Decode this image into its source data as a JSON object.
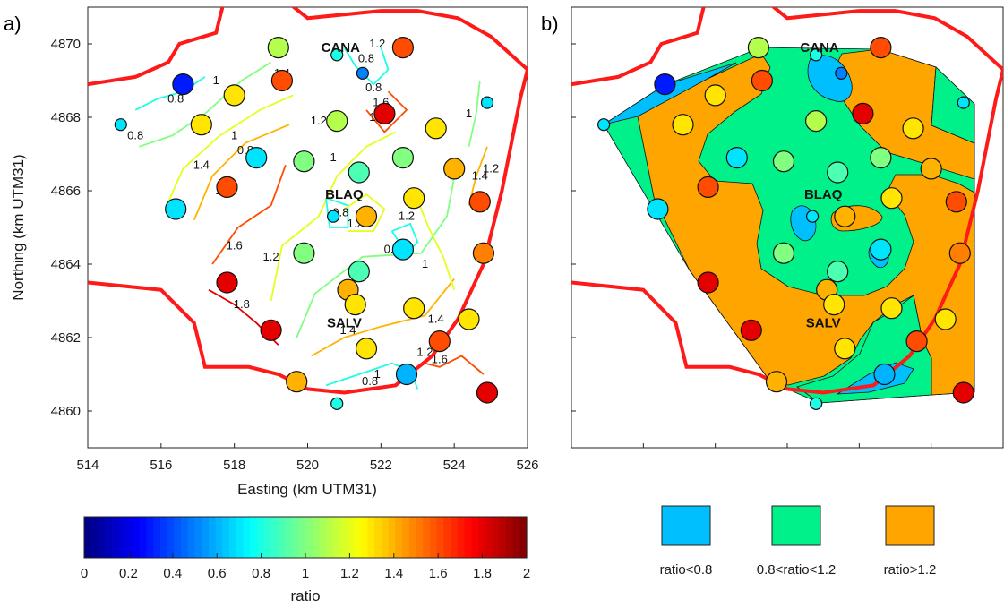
{
  "colors": {
    "boundary": "#ff1a1a",
    "class_low": "#00bfff",
    "class_mid": "#00f08a",
    "class_high": "#ffa500"
  },
  "chart_data": [
    {
      "type": "scatter",
      "panel_label": "a)",
      "xlabel": "Easting (km UTM31)",
      "ylabel": "Northing (km UTM31)",
      "xlim": [
        514,
        526
      ],
      "ylim": [
        4859,
        4871
      ],
      "x_ticks": [
        514,
        516,
        518,
        520,
        522,
        524,
        526
      ],
      "y_ticks": [
        4860,
        4862,
        4864,
        4866,
        4868,
        4870
      ],
      "overlay": "contour lines of ratio with inline labels",
      "contour_labels": [
        {
          "text": "0.8",
          "x": 515.3,
          "y": 4867.5
        },
        {
          "text": "0.8",
          "x": 516.4,
          "y": 4868.5
        },
        {
          "text": "1",
          "x": 517.5,
          "y": 4869.0
        },
        {
          "text": "1.4",
          "x": 517.1,
          "y": 4866.7
        },
        {
          "text": "1.2",
          "x": 517.7,
          "y": 4866.0
        },
        {
          "text": "1",
          "x": 518.0,
          "y": 4867.5
        },
        {
          "text": "0.8",
          "x": 518.3,
          "y": 4867.1
        },
        {
          "text": "1.6",
          "x": 518.0,
          "y": 4864.5
        },
        {
          "text": "1.8",
          "x": 518.2,
          "y": 4862.9
        },
        {
          "text": "1.2",
          "x": 519.0,
          "y": 4864.2
        },
        {
          "text": "1.4",
          "x": 519.3,
          "y": 4869.2
        },
        {
          "text": "1.2",
          "x": 520.3,
          "y": 4867.9
        },
        {
          "text": "1",
          "x": 520.7,
          "y": 4866.9
        },
        {
          "text": "0.8",
          "x": 520.9,
          "y": 4865.4
        },
        {
          "text": "1.2",
          "x": 521.3,
          "y": 4865.1
        },
        {
          "text": "1.4",
          "x": 521.1,
          "y": 4862.2
        },
        {
          "text": "0.8",
          "x": 521.7,
          "y": 4860.8
        },
        {
          "text": "1",
          "x": 521.9,
          "y": 4861.0
        },
        {
          "text": "1.2",
          "x": 521.9,
          "y": 4870.0
        },
        {
          "text": "0.8",
          "x": 521.6,
          "y": 4869.6
        },
        {
          "text": "0.8",
          "x": 521.8,
          "y": 4868.8
        },
        {
          "text": "1.4",
          "x": 521.9,
          "y": 4868.0
        },
        {
          "text": "1.6",
          "x": 522.0,
          "y": 4868.4
        },
        {
          "text": "0.8",
          "x": 522.3,
          "y": 4864.4
        },
        {
          "text": "1.2",
          "x": 522.7,
          "y": 4865.3
        },
        {
          "text": "1",
          "x": 523.2,
          "y": 4864.0
        },
        {
          "text": "1.4",
          "x": 523.5,
          "y": 4862.5
        },
        {
          "text": "1.2",
          "x": 523.2,
          "y": 4861.6
        },
        {
          "text": "1.6",
          "x": 523.6,
          "y": 4861.4
        },
        {
          "text": "1",
          "x": 524.4,
          "y": 4868.1
        },
        {
          "text": "1.4",
          "x": 524.7,
          "y": 4866.4
        },
        {
          "text": "1.2",
          "x": 525.0,
          "y": 4866.6
        }
      ],
      "site_labels": [
        {
          "text": "CANA",
          "x": 520.9,
          "y": 4869.9
        },
        {
          "text": "BLAQ",
          "x": 521.0,
          "y": 4865.9
        },
        {
          "text": "SALV",
          "x": 521.0,
          "y": 4862.4
        }
      ],
      "points_description": "station markers colored by ratio; large circles = stations, small circles = secondary stations",
      "points": [
        {
          "x": 519.2,
          "y": 4869.9,
          "ratio": 1.1,
          "size": "large"
        },
        {
          "x": 520.8,
          "y": 4869.7,
          "ratio": 0.8,
          "size": "small"
        },
        {
          "x": 521.5,
          "y": 4869.2,
          "ratio": 0.5,
          "size": "small"
        },
        {
          "x": 522.6,
          "y": 4869.9,
          "ratio": 1.6,
          "size": "large"
        },
        {
          "x": 516.6,
          "y": 4868.9,
          "ratio": 0.3,
          "size": "large"
        },
        {
          "x": 518.0,
          "y": 4868.6,
          "ratio": 1.3,
          "size": "large"
        },
        {
          "x": 519.3,
          "y": 4869.0,
          "ratio": 1.6,
          "size": "large"
        },
        {
          "x": 514.9,
          "y": 4867.8,
          "ratio": 0.7,
          "size": "small"
        },
        {
          "x": 517.1,
          "y": 4867.8,
          "ratio": 1.3,
          "size": "large"
        },
        {
          "x": 520.8,
          "y": 4867.9,
          "ratio": 1.1,
          "size": "large"
        },
        {
          "x": 522.1,
          "y": 4868.1,
          "ratio": 1.8,
          "size": "large"
        },
        {
          "x": 523.5,
          "y": 4867.7,
          "ratio": 1.3,
          "size": "large"
        },
        {
          "x": 524.9,
          "y": 4868.4,
          "ratio": 0.7,
          "size": "small"
        },
        {
          "x": 518.6,
          "y": 4866.9,
          "ratio": 0.7,
          "size": "large"
        },
        {
          "x": 519.9,
          "y": 4866.8,
          "ratio": 1.0,
          "size": "large"
        },
        {
          "x": 521.4,
          "y": 4866.5,
          "ratio": 0.9,
          "size": "large"
        },
        {
          "x": 522.6,
          "y": 4866.9,
          "ratio": 1.0,
          "size": "large"
        },
        {
          "x": 524.0,
          "y": 4866.6,
          "ratio": 1.4,
          "size": "large"
        },
        {
          "x": 517.8,
          "y": 4866.1,
          "ratio": 1.6,
          "size": "large"
        },
        {
          "x": 516.4,
          "y": 4865.5,
          "ratio": 0.7,
          "size": "large"
        },
        {
          "x": 520.7,
          "y": 4865.3,
          "ratio": 0.7,
          "size": "small"
        },
        {
          "x": 521.6,
          "y": 4865.3,
          "ratio": 1.4,
          "size": "large"
        },
        {
          "x": 522.9,
          "y": 4865.8,
          "ratio": 1.3,
          "size": "large"
        },
        {
          "x": 524.7,
          "y": 4865.7,
          "ratio": 1.6,
          "size": "large"
        },
        {
          "x": 519.9,
          "y": 4864.3,
          "ratio": 1.0,
          "size": "large"
        },
        {
          "x": 522.6,
          "y": 4864.4,
          "ratio": 0.7,
          "size": "large"
        },
        {
          "x": 524.8,
          "y": 4864.3,
          "ratio": 1.5,
          "size": "large"
        },
        {
          "x": 521.4,
          "y": 4863.8,
          "ratio": 0.9,
          "size": "large"
        },
        {
          "x": 517.8,
          "y": 4863.5,
          "ratio": 1.8,
          "size": "large"
        },
        {
          "x": 521.1,
          "y": 4863.3,
          "ratio": 1.4,
          "size": "large"
        },
        {
          "x": 521.3,
          "y": 4862.9,
          "ratio": 1.3,
          "size": "large"
        },
        {
          "x": 522.9,
          "y": 4862.8,
          "ratio": 1.3,
          "size": "large"
        },
        {
          "x": 524.4,
          "y": 4862.5,
          "ratio": 1.3,
          "size": "large"
        },
        {
          "x": 519.0,
          "y": 4862.2,
          "ratio": 1.8,
          "size": "large"
        },
        {
          "x": 521.6,
          "y": 4861.7,
          "ratio": 1.3,
          "size": "large"
        },
        {
          "x": 523.6,
          "y": 4861.9,
          "ratio": 1.6,
          "size": "large"
        },
        {
          "x": 519.7,
          "y": 4860.8,
          "ratio": 1.4,
          "size": "large"
        },
        {
          "x": 522.7,
          "y": 4861.0,
          "ratio": 0.6,
          "size": "large"
        },
        {
          "x": 520.8,
          "y": 4860.2,
          "ratio": 0.8,
          "size": "small"
        },
        {
          "x": 524.9,
          "y": 4860.5,
          "ratio": 1.8,
          "size": "large"
        }
      ]
    },
    {
      "type": "scatter",
      "panel_label": "b)",
      "overlay": "filled ratio classes",
      "xlim": [
        514,
        526
      ],
      "ylim": [
        4859,
        4871
      ],
      "site_labels": [
        {
          "text": "CANA",
          "x": 520.9,
          "y": 4869.9
        },
        {
          "text": "BLAQ",
          "x": 521.0,
          "y": 4865.9
        },
        {
          "text": "SALV",
          "x": 521.0,
          "y": 4862.4
        }
      ]
    },
    {
      "type": "heatmap",
      "role": "colorbar",
      "label": "ratio",
      "range": [
        0,
        2
      ],
      "ticks": [
        "0",
        "0.2",
        "0.4",
        "0.6",
        "0.8",
        "1",
        "1.2",
        "1.4",
        "1.6",
        "1.8",
        "2"
      ]
    }
  ],
  "legend": {
    "items": [
      {
        "label": "ratio<0.8",
        "color": "#00bfff"
      },
      {
        "label": "0.8<ratio<1.2",
        "color": "#00f08a"
      },
      {
        "label": "ratio>1.2",
        "color": "#ffa500"
      }
    ]
  }
}
